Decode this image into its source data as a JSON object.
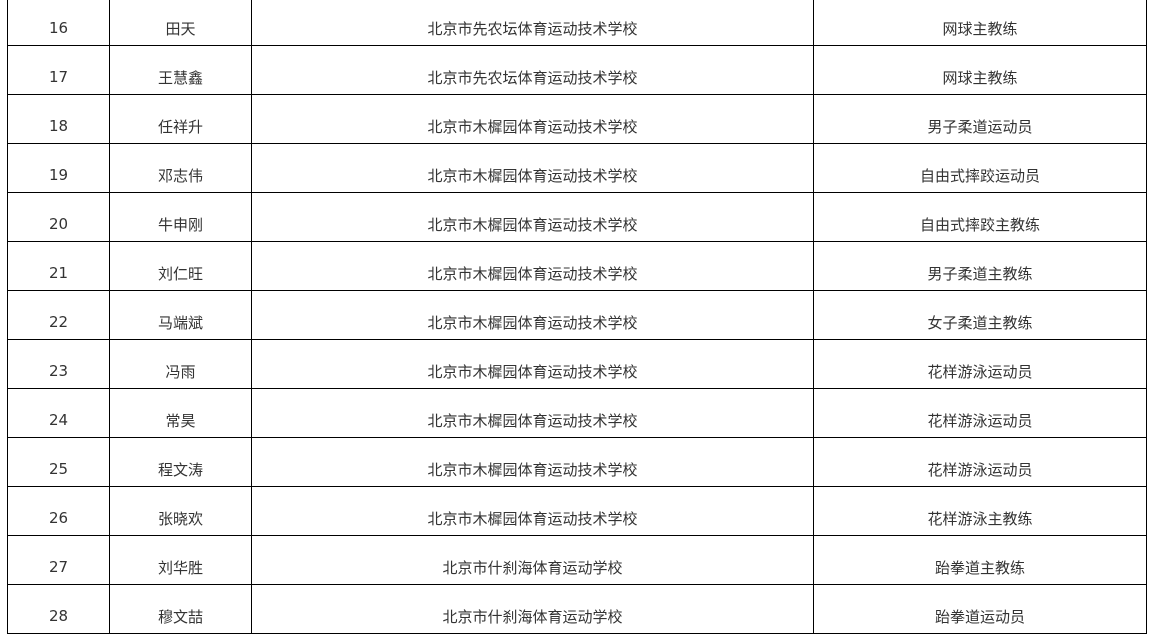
{
  "rows": [
    {
      "no": "16",
      "name": "田天",
      "school": "北京市先农坛体育运动技术学校",
      "role": "网球主教练"
    },
    {
      "no": "17",
      "name": "王慧鑫",
      "school": "北京市先农坛体育运动技术学校",
      "role": "网球主教练"
    },
    {
      "no": "18",
      "name": "任祥升",
      "school": "北京市木樨园体育运动技术学校",
      "role": "男子柔道运动员"
    },
    {
      "no": "19",
      "name": "邓志伟",
      "school": "北京市木樨园体育运动技术学校",
      "role": "自由式摔跤运动员"
    },
    {
      "no": "20",
      "name": "牛申刚",
      "school": "北京市木樨园体育运动技术学校",
      "role": "自由式摔跤主教练"
    },
    {
      "no": "21",
      "name": "刘仁旺",
      "school": "北京市木樨园体育运动技术学校",
      "role": "男子柔道主教练"
    },
    {
      "no": "22",
      "name": "马端斌",
      "school": "北京市木樨园体育运动技术学校",
      "role": "女子柔道主教练"
    },
    {
      "no": "23",
      "name": "冯雨",
      "school": "北京市木樨园体育运动技术学校",
      "role": "花样游泳运动员"
    },
    {
      "no": "24",
      "name": "常昊",
      "school": "北京市木樨园体育运动技术学校",
      "role": "花样游泳运动员"
    },
    {
      "no": "25",
      "name": "程文涛",
      "school": "北京市木樨园体育运动技术学校",
      "role": "花样游泳运动员"
    },
    {
      "no": "26",
      "name": "张晓欢",
      "school": "北京市木樨园体育运动技术学校",
      "role": "花样游泳主教练"
    },
    {
      "no": "27",
      "name": "刘华胜",
      "school": "北京市什刹海体育运动学校",
      "role": "跆拳道主教练"
    },
    {
      "no": "28",
      "name": "穆文喆",
      "school": "北京市什刹海体育运动学校",
      "role": "跆拳道运动员"
    }
  ]
}
